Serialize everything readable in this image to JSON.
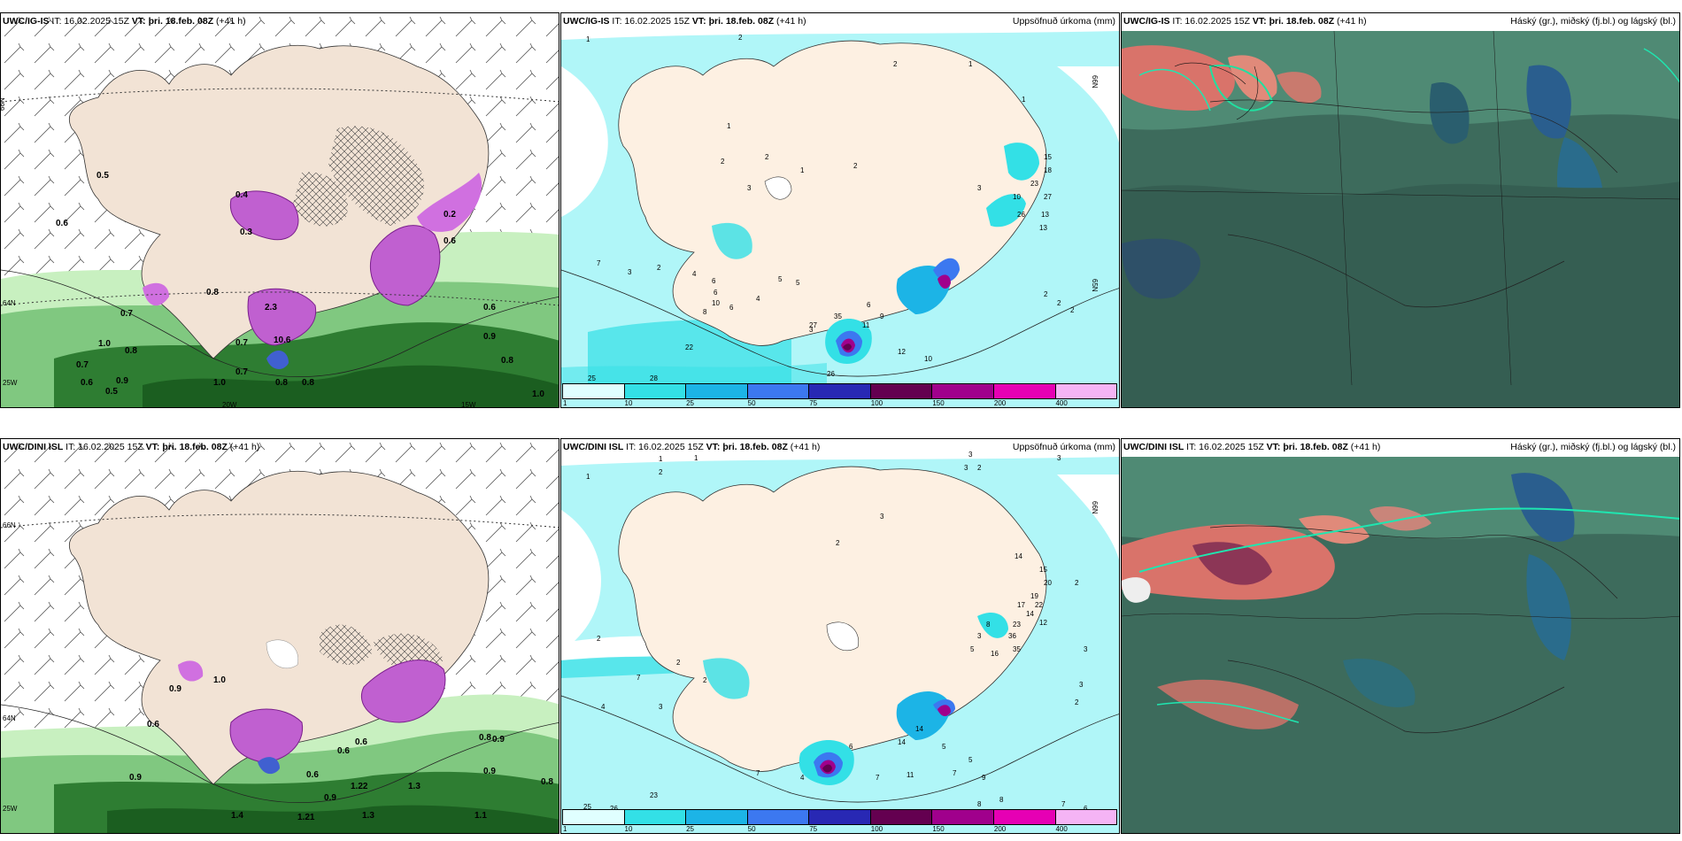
{
  "panels": {
    "p1": {
      "model": "UWC/IG-IS",
      "it": "IT: 16.02.2025 15Z",
      "vt": "VT: þri. 18.feb. 08Z",
      "lead": "(+41 h)"
    },
    "p2": {
      "model": "UWC/IG-IS",
      "it": "IT: 16.02.2025 15Z",
      "vt": "VT: þri. 18.feb. 08Z",
      "lead": "(+41 h)",
      "right": "Uppsöfnuð úrkoma (mm)"
    },
    "p3": {
      "model": "UWC/IG-IS",
      "it": "IT: 16.02.2025 15Z",
      "vt": "VT: þri. 18.feb. 08Z",
      "lead": "(+41 h)",
      "right": "Háský (gr.), miðský (fj.bl.) og lágský (bl.)"
    },
    "p4": {
      "model": "UWC/DINI ISL",
      "it": "IT: 16.02.2025 15Z",
      "vt": "VT: þri. 18.feb. 08Z",
      "lead": "(+41 h)"
    },
    "p5": {
      "model": "UWC/DINI ISL",
      "it": "IT: 16.02.2025 15Z",
      "vt": "VT: þri. 18.feb. 08Z",
      "lead": "(+41 h)",
      "right": "Uppsöfnuð úrkoma (mm)"
    },
    "p6": {
      "model": "UWC/DINI ISL",
      "it": "IT: 16.02.2025 15Z",
      "vt": "VT: þri. 18.feb. 08Z",
      "lead": "(+41 h)",
      "right": "Háský (gr.), miðský (fj.bl.) og lágský (bl.)"
    }
  },
  "axis_labels": {
    "lat66": "66N",
    "lat64": "64N",
    "lat65": "65N",
    "lon20": "20W",
    "lon15": "15W",
    "lon25": "25W"
  },
  "colorbar": {
    "labels": [
      "1",
      "10",
      "25",
      "50",
      "75",
      "100",
      "150",
      "200",
      "400"
    ],
    "colors": [
      "#e0ffff",
      "#33e0e6",
      "#1cb4e6",
      "#3c78f0",
      "#2828b4",
      "#640050",
      "#a0008c",
      "#e600b4",
      "#f5b4f5"
    ]
  },
  "p1_values": [
    "0.5",
    "0.6",
    "0.7",
    "0.8",
    "1.0",
    "0.9",
    "0.6",
    "0.9",
    "1.0",
    "0.7",
    "0.6",
    "0.5",
    "0.8",
    "1.0",
    "0.7",
    "0.8",
    "0.4",
    "0.3",
    "0.2",
    "2.3",
    "10.6",
    "0.7",
    "0.8",
    "0.6",
    "0.8"
  ],
  "p2_values": [
    "1",
    "2",
    "2",
    "1",
    "1",
    "1",
    "2",
    "2",
    "1",
    "3",
    "2",
    "15",
    "18",
    "23",
    "27",
    "10",
    "26",
    "13",
    "3",
    "7",
    "3",
    "2",
    "4",
    "6",
    "6",
    "8",
    "6",
    "10",
    "4",
    "5",
    "5",
    "3",
    "35",
    "27",
    "26",
    "22",
    "28",
    "25",
    "11",
    "12",
    "10",
    "6",
    "9",
    "2",
    "2",
    "2",
    "13"
  ],
  "p4_values": [
    "1.0",
    "0.9",
    "0.6",
    "0.9",
    "0.8",
    "0.6",
    "0.6",
    "0.8",
    "0.9",
    "1.3",
    "1.22",
    "1.4",
    "1.3",
    "1.1",
    "1.21",
    "0.6",
    "0.9",
    "0.9"
  ],
  "p5_values": [
    "1",
    "2",
    "1",
    "1",
    "3",
    "3",
    "2",
    "3",
    "2",
    "3",
    "14",
    "15",
    "20",
    "19",
    "17",
    "22",
    "14",
    "12",
    "23",
    "36",
    "35",
    "16",
    "3",
    "8",
    "5",
    "7",
    "4",
    "3",
    "2",
    "2",
    "2",
    "7",
    "4",
    "6",
    "14",
    "14",
    "11",
    "7",
    "5",
    "5",
    "7",
    "9",
    "8",
    "8",
    "7",
    "7",
    "6",
    "23",
    "25",
    "26",
    "2",
    "3",
    "3",
    "2"
  ]
}
